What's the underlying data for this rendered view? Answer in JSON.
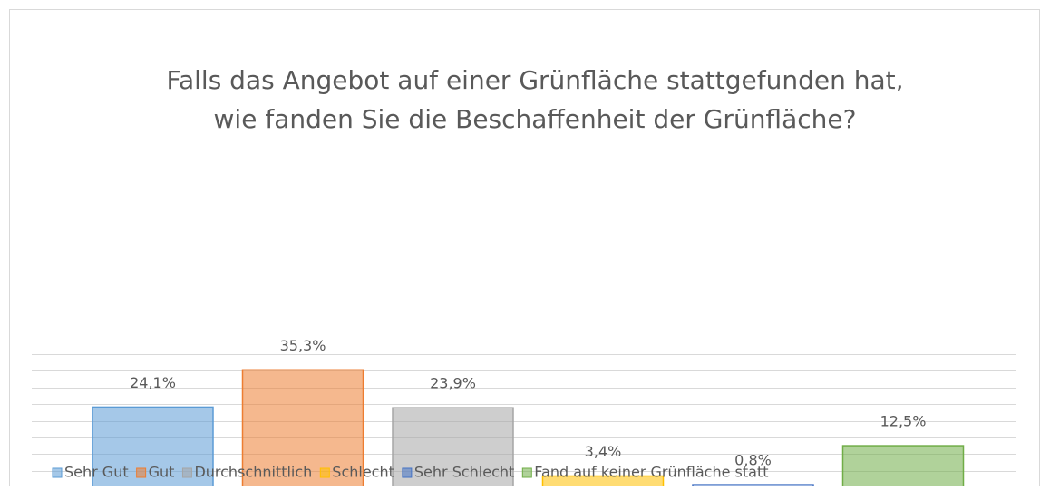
{
  "chart_data": {
    "type": "bar",
    "title": "Falls das Angebot auf einer Grünfläche stattgefunden hat,",
    "subtitle": "wie fanden Sie die Beschaffenheit der Grünfläche?",
    "categories": [
      null
    ],
    "series": [
      {
        "name": "Sehr Gut",
        "color": "#5b9bd5",
        "values": [
          24.1
        ],
        "value_labels": [
          "24,1%"
        ]
      },
      {
        "name": "Gut",
        "color": "#ed7d31",
        "values": [
          35.3
        ],
        "value_labels": [
          "35,3%"
        ]
      },
      {
        "name": "Durchschnittlich",
        "color": "#a5a5a5",
        "values": [
          23.9
        ],
        "value_labels": [
          "23,9%"
        ]
      },
      {
        "name": "Schlecht",
        "color": "#ffc000",
        "values": [
          3.4
        ],
        "value_labels": [
          "3,4%"
        ]
      },
      {
        "name": "Sehr Schlecht",
        "color": "#4472c4",
        "values": [
          0.8
        ],
        "value_labels": [
          "0,8%"
        ]
      },
      {
        "name": "Fand auf keiner Grünfläche statt",
        "color": "#70ad47",
        "values": [
          12.5
        ],
        "value_labels": [
          "12,5%"
        ]
      }
    ],
    "ylim": [
      0,
      40
    ],
    "yticks": [
      0,
      5,
      10,
      15,
      20,
      25,
      30,
      35,
      40
    ],
    "grid": true,
    "legend": "bottom"
  }
}
